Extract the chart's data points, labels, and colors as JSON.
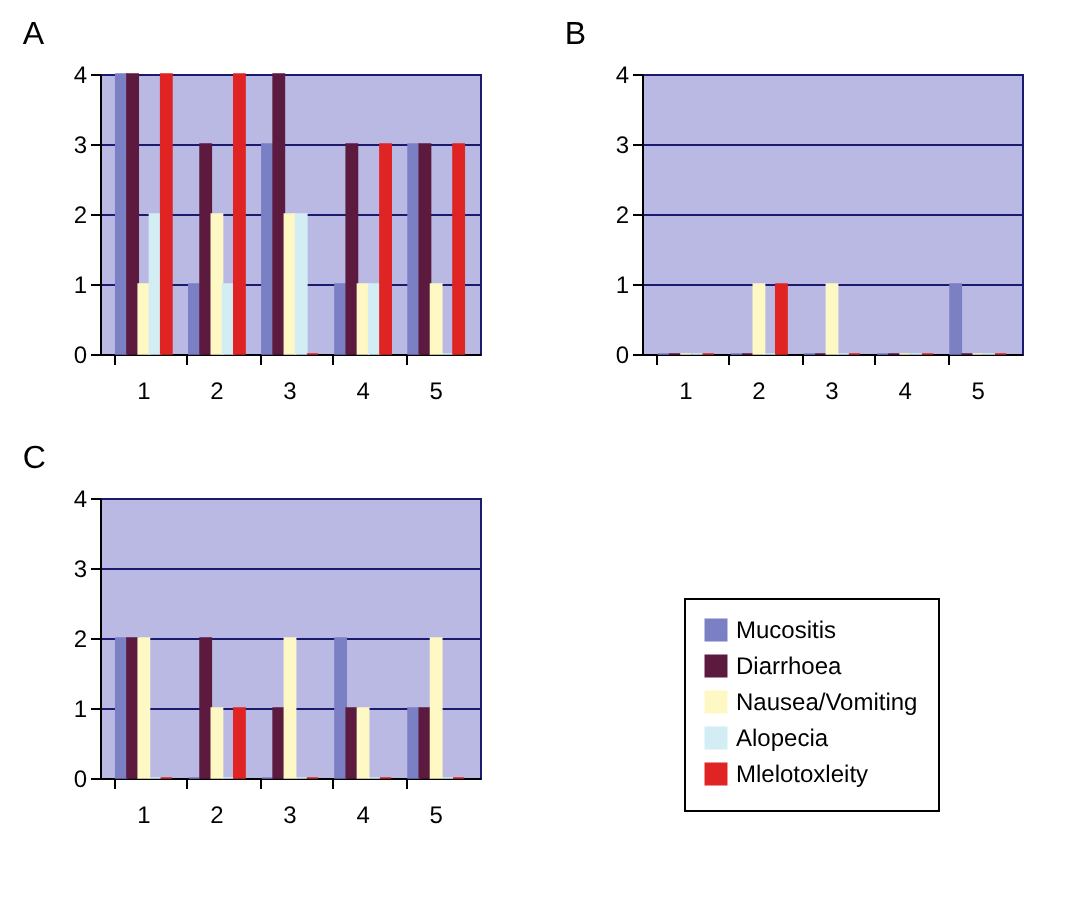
{
  "chart_data": [
    {
      "type": "bar",
      "title": "A",
      "categories": [
        "1",
        "2",
        "3",
        "4",
        "5"
      ],
      "ylim": [
        0,
        4
      ],
      "yticks": [
        0,
        1,
        2,
        3,
        4
      ],
      "grid": "y",
      "legend": "bottom right",
      "series": [
        {
          "name": "Mucositis",
          "color": "#7b7fc4",
          "values": [
            4,
            1,
            3,
            1,
            3
          ]
        },
        {
          "name": "Diarrhoea",
          "color": "#5c1a3f",
          "values": [
            4,
            3,
            4,
            3,
            3
          ]
        },
        {
          "name": "Nausea/Vomiting",
          "color": "#fdf8c4",
          "values": [
            1,
            2,
            2,
            1,
            1
          ]
        },
        {
          "name": "Alopecia",
          "color": "#d2eef4",
          "values": [
            2,
            1,
            2,
            1,
            0
          ]
        },
        {
          "name": "Mlelotoxleity",
          "color": "#e02424",
          "values": [
            4,
            4,
            0,
            3,
            3
          ]
        }
      ]
    },
    {
      "type": "bar",
      "title": "B",
      "categories": [
        "1",
        "2",
        "3",
        "4",
        "5"
      ],
      "ylim": [
        0,
        4
      ],
      "yticks": [
        0,
        1,
        2,
        3,
        4
      ],
      "grid": "y",
      "legend": "bottom right",
      "series": [
        {
          "name": "Mucositis",
          "color": "#7b7fc4",
          "values": [
            0,
            0,
            0,
            0,
            1
          ]
        },
        {
          "name": "Diarrhoea",
          "color": "#5c1a3f",
          "values": [
            0,
            0,
            0,
            0,
            0
          ]
        },
        {
          "name": "Nausea/Vomiting",
          "color": "#fdf8c4",
          "values": [
            0,
            1,
            1,
            0,
            0
          ]
        },
        {
          "name": "Alopecia",
          "color": "#d2eef4",
          "values": [
            0,
            0,
            0,
            0,
            0
          ]
        },
        {
          "name": "Mlelotoxleity",
          "color": "#e02424",
          "values": [
            0,
            1,
            0,
            0,
            0
          ]
        }
      ]
    },
    {
      "type": "bar",
      "title": "C",
      "categories": [
        "1",
        "2",
        "3",
        "4",
        "5"
      ],
      "ylim": [
        0,
        4
      ],
      "yticks": [
        0,
        1,
        2,
        3,
        4
      ],
      "grid": "y",
      "legend": "bottom right",
      "series": [
        {
          "name": "Mucositis",
          "color": "#7b7fc4",
          "values": [
            2,
            0,
            0,
            2,
            1
          ]
        },
        {
          "name": "Diarrhoea",
          "color": "#5c1a3f",
          "values": [
            2,
            2,
            1,
            1,
            1
          ]
        },
        {
          "name": "Nausea/Vomiting",
          "color": "#fdf8c4",
          "values": [
            2,
            1,
            2,
            1,
            2
          ]
        },
        {
          "name": "Alopecia",
          "color": "#d2eef4",
          "values": [
            0,
            0,
            0,
            0,
            0
          ]
        },
        {
          "name": "Mlelotoxleity",
          "color": "#e02424",
          "values": [
            0,
            1,
            0,
            0,
            0
          ]
        }
      ]
    }
  ]
}
